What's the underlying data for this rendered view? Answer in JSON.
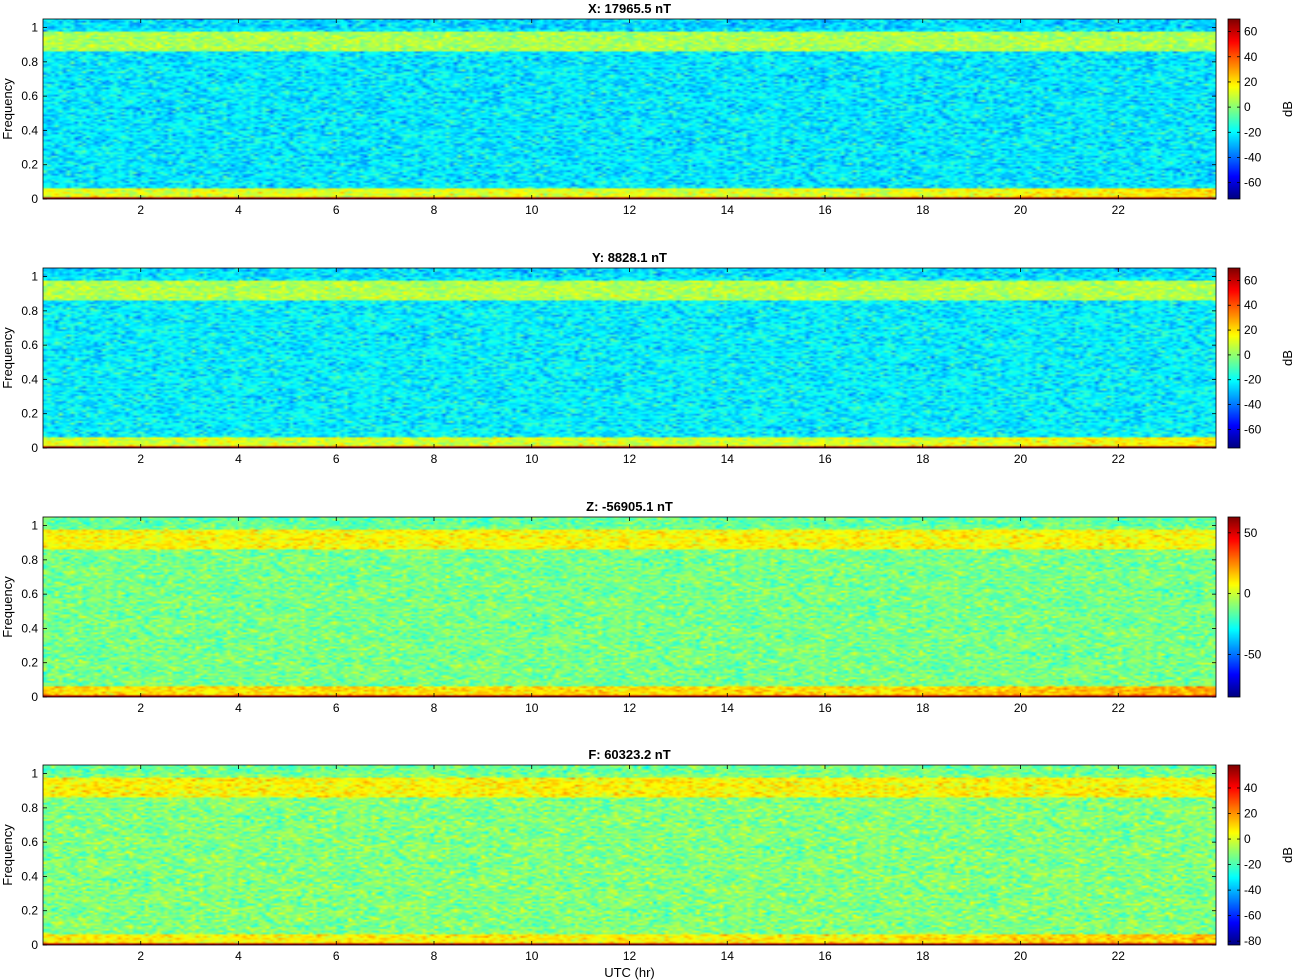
{
  "figure": {
    "xlabel": "UTC (hr)",
    "colorbar_label": "dB"
  },
  "chart_data": [
    {
      "type": "heatmap",
      "title": "X: 17965.5 nT",
      "ylabel": "Frequency",
      "xlabel": "",
      "xlim": [
        0,
        24
      ],
      "ylim": [
        0,
        1.05
      ],
      "x_ticks": [
        2,
        4,
        6,
        8,
        10,
        12,
        14,
        16,
        18,
        20,
        22
      ],
      "y_ticks": [
        0,
        0.2,
        0.4,
        0.6,
        0.8,
        1
      ],
      "colorbar": {
        "label": "dB",
        "range": [
          -73,
          70
        ],
        "ticks": [
          60,
          40,
          20,
          0,
          -20,
          -40,
          -60
        ]
      },
      "levels": {
        "bottom_line": 66,
        "low_band": 20,
        "background": -22,
        "high_band": 5,
        "top_edge": -25
      },
      "colormap": "jet"
    },
    {
      "type": "heatmap",
      "title": "Y: 8828.1 nT",
      "ylabel": "Frequency",
      "xlabel": "",
      "xlim": [
        0,
        24
      ],
      "ylim": [
        0,
        1.05
      ],
      "x_ticks": [
        2,
        4,
        6,
        8,
        10,
        12,
        14,
        16,
        18,
        20,
        22
      ],
      "y_ticks": [
        0,
        0.2,
        0.4,
        0.6,
        0.8,
        1
      ],
      "colorbar": {
        "label": "dB",
        "range": [
          -75,
          70
        ],
        "ticks": [
          60,
          40,
          20,
          0,
          -20,
          -40,
          -60
        ]
      },
      "levels": {
        "bottom_line": 66,
        "low_band": 18,
        "background": -22,
        "high_band": 5,
        "top_edge": -25
      },
      "colormap": "jet"
    },
    {
      "type": "heatmap",
      "title": "Z: -56905.1 nT",
      "ylabel": "Frequency",
      "xlabel": "",
      "xlim": [
        0,
        24
      ],
      "ylim": [
        0,
        1.05
      ],
      "x_ticks": [
        2,
        4,
        6,
        8,
        10,
        12,
        14,
        16,
        18,
        20,
        22
      ],
      "y_ticks": [
        0,
        0.2,
        0.4,
        0.6,
        0.8,
        1
      ],
      "colorbar": {
        "label": "",
        "range": [
          -85,
          63
        ],
        "ticks": [
          50,
          0,
          -50
        ]
      },
      "levels": {
        "bottom_line": 55,
        "low_band": 20,
        "background": -12,
        "high_band": 8,
        "top_edge": -15
      },
      "colormap": "jet"
    },
    {
      "type": "heatmap",
      "title": "F: 60323.2 nT",
      "ylabel": "Frequency",
      "xlabel": "UTC (hr)",
      "xlim": [
        0,
        24
      ],
      "ylim": [
        0,
        1.05
      ],
      "x_ticks": [
        2,
        4,
        6,
        8,
        10,
        12,
        14,
        16,
        18,
        20,
        22
      ],
      "y_ticks": [
        0,
        0.2,
        0.4,
        0.6,
        0.8,
        1
      ],
      "colorbar": {
        "label": "dB",
        "range": [
          -83,
          58
        ],
        "ticks": [
          40,
          20,
          0,
          -20,
          -40,
          -60,
          -80
        ]
      },
      "levels": {
        "bottom_line": 52,
        "low_band": 14,
        "background": -12,
        "high_band": 6,
        "top_edge": -15
      },
      "colormap": "jet"
    }
  ]
}
